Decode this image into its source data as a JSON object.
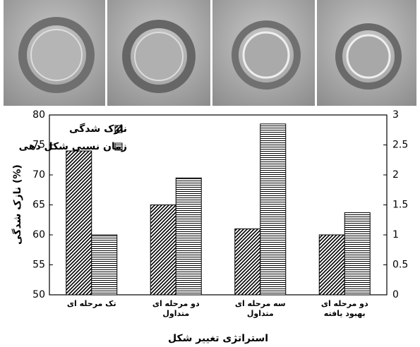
{
  "chart_data": {
    "type": "bar",
    "y_label": "نازک شدگی (%)",
    "x_label": "استراتژی تغییر شکل",
    "categories": [
      "تک مرحله ای",
      "دو مرحله ای\nمتداول",
      "سه مرحله ای\nمتداول",
      "دو مرحله ای\nبهبود یافته"
    ],
    "series": [
      {
        "name": "نازک شدگی",
        "color": "#000000",
        "pattern": "diagonal",
        "values": [
          74,
          65,
          61,
          60
        ]
      },
      {
        "name": "زمان نسبی شکل دهی",
        "color": "#000000",
        "pattern": "horizontal",
        "axis": "y2",
        "values": [
          1,
          1.95,
          2.85,
          1.37
        ]
      }
    ],
    "ylim": [
      50,
      80
    ],
    "yticks": [
      50,
      55,
      60,
      65,
      70,
      75,
      80
    ],
    "y2lim": [
      0,
      3
    ],
    "y2ticks": [
      0,
      0.5,
      1,
      1.5,
      2,
      2.5,
      3
    ]
  }
}
